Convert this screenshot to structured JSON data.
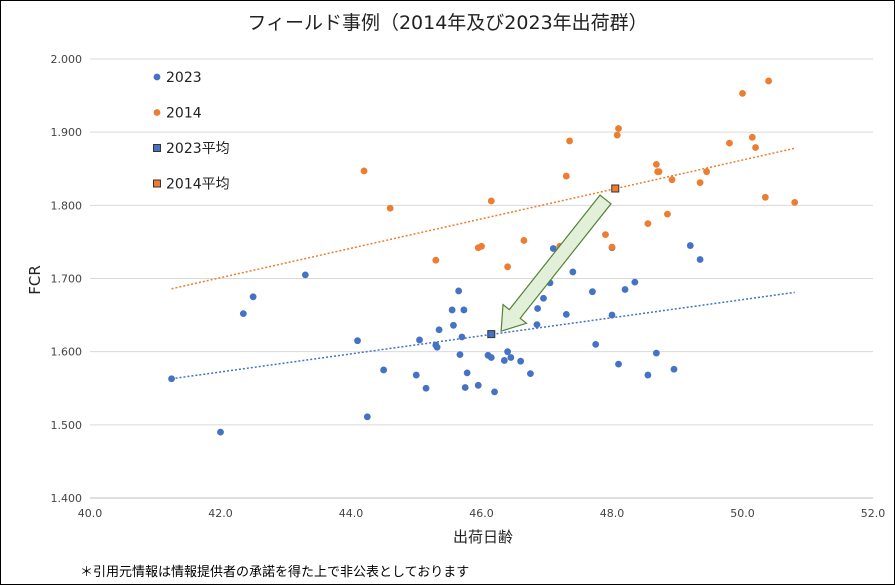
{
  "chart_data": {
    "type": "scatter",
    "title": "フィールド事例（2014年及び2023年出荷群）",
    "xlabel": "出荷日齢",
    "ylabel": "FCR",
    "xlim": [
      40.0,
      52.0
    ],
    "ylim": [
      1.4,
      2.0
    ],
    "xticks": [
      "40.0",
      "42.0",
      "44.0",
      "46.0",
      "48.0",
      "50.0",
      "52.0"
    ],
    "yticks": [
      "1.400",
      "1.500",
      "1.600",
      "1.700",
      "1.800",
      "1.900",
      "2.000"
    ],
    "grid": "horizontal",
    "legend_position": "top-left",
    "colors": {
      "s2023": "#4472C4",
      "s2014": "#ED7D31",
      "arrow_fill": "#E2F0D9",
      "arrow_stroke": "#548235"
    },
    "series": [
      {
        "name": "2023",
        "marker": "circle",
        "points": [
          [
            41.25,
            1.563
          ],
          [
            42.0,
            1.49
          ],
          [
            42.35,
            1.652
          ],
          [
            42.5,
            1.675
          ],
          [
            43.3,
            1.705
          ],
          [
            44.1,
            1.615
          ],
          [
            44.25,
            1.511
          ],
          [
            44.5,
            1.575
          ],
          [
            45.0,
            1.568
          ],
          [
            45.05,
            1.616
          ],
          [
            45.15,
            1.55
          ],
          [
            45.3,
            1.609
          ],
          [
            45.32,
            1.606
          ],
          [
            45.35,
            1.63
          ],
          [
            45.55,
            1.657
          ],
          [
            45.57,
            1.636
          ],
          [
            45.65,
            1.683
          ],
          [
            45.67,
            1.596
          ],
          [
            45.7,
            1.62
          ],
          [
            45.73,
            1.657
          ],
          [
            45.75,
            1.551
          ],
          [
            45.78,
            1.571
          ],
          [
            45.95,
            1.554
          ],
          [
            46.1,
            1.595
          ],
          [
            46.15,
            1.592
          ],
          [
            46.2,
            1.545
          ],
          [
            46.35,
            1.588
          ],
          [
            46.4,
            1.6
          ],
          [
            46.45,
            1.592
          ],
          [
            46.6,
            1.587
          ],
          [
            46.75,
            1.57
          ],
          [
            46.85,
            1.637
          ],
          [
            46.86,
            1.659
          ],
          [
            46.95,
            1.673
          ],
          [
            47.05,
            1.694
          ],
          [
            47.1,
            1.741
          ],
          [
            47.3,
            1.651
          ],
          [
            47.4,
            1.709
          ],
          [
            47.7,
            1.682
          ],
          [
            47.75,
            1.61
          ],
          [
            48.0,
            1.742
          ],
          [
            48.0,
            1.65
          ],
          [
            48.1,
            1.583
          ],
          [
            48.2,
            1.685
          ],
          [
            48.35,
            1.695
          ],
          [
            48.55,
            1.568
          ],
          [
            48.68,
            1.598
          ],
          [
            48.95,
            1.576
          ],
          [
            49.2,
            1.745
          ],
          [
            49.35,
            1.726
          ]
        ]
      },
      {
        "name": "2014",
        "marker": "circle",
        "points": [
          [
            44.2,
            1.847
          ],
          [
            44.6,
            1.796
          ],
          [
            45.3,
            1.725
          ],
          [
            45.95,
            1.742
          ],
          [
            46.0,
            1.744
          ],
          [
            46.15,
            1.806
          ],
          [
            46.4,
            1.716
          ],
          [
            46.65,
            1.752
          ],
          [
            47.2,
            1.744
          ],
          [
            47.3,
            1.84
          ],
          [
            47.35,
            1.888
          ],
          [
            47.9,
            1.76
          ],
          [
            48.0,
            1.743
          ],
          [
            48.08,
            1.896
          ],
          [
            48.1,
            1.905
          ],
          [
            48.55,
            1.775
          ],
          [
            48.68,
            1.856
          ],
          [
            48.7,
            1.846
          ],
          [
            48.72,
            1.846
          ],
          [
            48.85,
            1.788
          ],
          [
            48.92,
            1.835
          ],
          [
            49.35,
            1.831
          ],
          [
            49.45,
            1.846
          ],
          [
            49.8,
            1.885
          ],
          [
            50.0,
            1.953
          ],
          [
            50.15,
            1.893
          ],
          [
            50.2,
            1.879
          ],
          [
            50.35,
            1.811
          ],
          [
            50.4,
            1.97
          ],
          [
            50.8,
            1.804
          ]
        ]
      },
      {
        "name": "2023平均",
        "marker": "square",
        "points": [
          [
            46.15,
            1.624
          ]
        ]
      },
      {
        "name": "2014平均",
        "marker": "square",
        "points": [
          [
            48.05,
            1.823
          ]
        ]
      }
    ],
    "trendlines": [
      {
        "series": "2023",
        "from": [
          41.25,
          1.563
        ],
        "to": [
          50.8,
          1.681
        ]
      },
      {
        "series": "2014",
        "from": [
          41.25,
          1.686
        ],
        "to": [
          50.8,
          1.878
        ]
      }
    ],
    "arrow": {
      "from": [
        47.9,
        1.808
      ],
      "to": [
        46.3,
        1.628
      ]
    }
  },
  "footnote": "＊引用元情報は情報提供者の承諾を得た上で非公表としております"
}
